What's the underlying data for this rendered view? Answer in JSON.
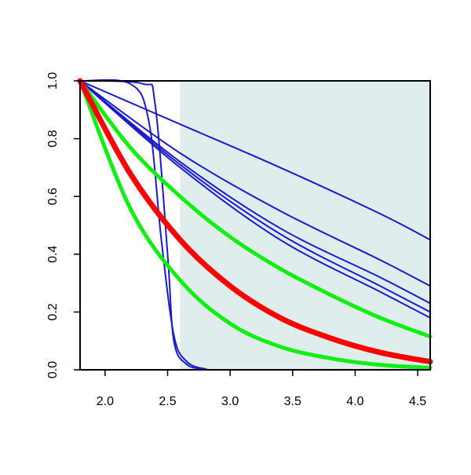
{
  "chart_data": {
    "type": "line",
    "title": "",
    "xlabel": "",
    "ylabel": "",
    "xlim": [
      1.8,
      4.6
    ],
    "ylim": [
      0.0,
      1.0
    ],
    "x_ticks": [
      "2.0",
      "2.5",
      "3.0",
      "3.5",
      "4.0",
      "4.5"
    ],
    "y_ticks": [
      "0.0",
      "0.2",
      "0.4",
      "0.6",
      "0.8",
      "1.0"
    ],
    "grid": false,
    "shaded_region": {
      "x_start": 2.6,
      "x_end": 4.6,
      "color": "#e0eded"
    },
    "colors": {
      "blue": "#1a1acc",
      "green": "#11ee11",
      "red": "#ff0000",
      "shade": "#e0eded"
    },
    "series": [
      {
        "color": "blue",
        "x": [
          1.8,
          2.6,
          3.4,
          4.2,
          4.6
        ],
        "y": [
          1.0,
          0.85,
          0.7,
          0.54,
          0.45
        ]
      },
      {
        "color": "blue",
        "x": [
          1.8,
          2.6,
          3.4,
          4.2,
          4.6
        ],
        "y": [
          1.0,
          0.75,
          0.55,
          0.38,
          0.29
        ]
      },
      {
        "color": "blue",
        "x": [
          1.8,
          2.6,
          3.4,
          4.2,
          4.6
        ],
        "y": [
          1.0,
          0.72,
          0.49,
          0.32,
          0.23
        ]
      },
      {
        "color": "blue",
        "x": [
          1.8,
          2.6,
          3.4,
          4.2,
          4.6
        ],
        "y": [
          1.0,
          0.71,
          0.47,
          0.29,
          0.2
        ]
      },
      {
        "color": "blue",
        "x": [
          1.8,
          2.6,
          3.4,
          4.2,
          4.6
        ],
        "y": [
          1.0,
          0.7,
          0.45,
          0.27,
          0.18
        ]
      },
      {
        "color": "blue",
        "x": [
          1.8,
          2.2,
          2.35,
          2.45,
          2.55,
          2.65,
          2.8,
          3.0,
          4.6
        ],
        "y": [
          1.0,
          0.99,
          0.86,
          0.45,
          0.12,
          0.03,
          0.003,
          0.0,
          0.0
        ]
      },
      {
        "color": "blue",
        "x": [
          1.8,
          2.3,
          2.4,
          2.5,
          2.55,
          2.65,
          2.8,
          3.0,
          4.6
        ],
        "y": [
          1.0,
          0.99,
          0.92,
          0.4,
          0.1,
          0.02,
          0.002,
          0.0,
          0.0
        ]
      },
      {
        "color": "green",
        "x": [
          1.8,
          2.2,
          2.6,
          3.0,
          3.4,
          3.8,
          4.2,
          4.6
        ],
        "y": [
          1.0,
          0.77,
          0.6,
          0.46,
          0.35,
          0.26,
          0.18,
          0.115
        ]
      },
      {
        "color": "green",
        "x": [
          1.8,
          2.2,
          2.6,
          3.0,
          3.4,
          3.8,
          4.2,
          4.6
        ],
        "y": [
          1.0,
          0.56,
          0.31,
          0.16,
          0.08,
          0.04,
          0.017,
          0.007
        ]
      },
      {
        "color": "red",
        "x": [
          1.8,
          2.2,
          2.6,
          3.0,
          3.4,
          3.8,
          4.2,
          4.6
        ],
        "y": [
          1.0,
          0.68,
          0.45,
          0.29,
          0.18,
          0.11,
          0.06,
          0.028
        ]
      }
    ]
  }
}
